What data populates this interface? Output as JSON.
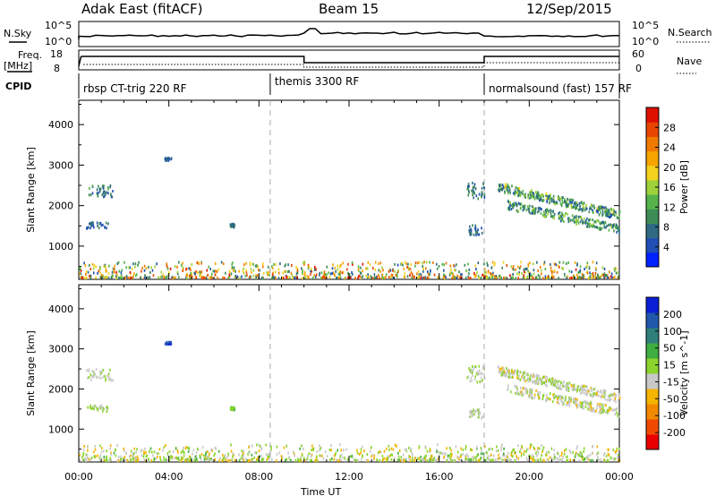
{
  "header": {
    "title": "Adak East (fitACF)",
    "beam": "Beam 15",
    "date": "12/Sep/2015"
  },
  "top_panels": {
    "nsky_label": "N.Sky",
    "nsky_ticks": [
      "10^5",
      "10^0"
    ],
    "nsearch_label": "N.Search",
    "nsearch_ticks": [
      "10^5",
      "10^0"
    ],
    "freq_label": "Freq.",
    "freq_unit": "[MHz]",
    "freq_ticks": [
      "18",
      "8"
    ],
    "nave_label": "Nave",
    "nave_ticks": [
      "60",
      "0"
    ],
    "cpid_label": "CPID"
  },
  "cpid_segments": [
    {
      "label": "rbsp CT-trig 220 RF",
      "start_h": 0.0,
      "end_h": 8.5
    },
    {
      "label": "themis 3300 RF",
      "start_h": 8.5,
      "end_h": 18.0
    },
    {
      "label": "normalsound (fast) 157 RF",
      "start_h": 18.0,
      "end_h": 24.0
    }
  ],
  "colors": {
    "power": [
      "#0022ff",
      "#1f4fb4",
      "#2e6b82",
      "#3e8c55",
      "#55b34a",
      "#9ed23a",
      "#f4d21e",
      "#f5a400",
      "#f07a00",
      "#e84500",
      "#dd1000"
    ],
    "velocity": [
      "#e80000",
      "#ef4a00",
      "#f28a00",
      "#f5b400",
      "#c8c8c8",
      "#8bd42e",
      "#3fae40",
      "#2f7f7a",
      "#2058ad",
      "#0a1fd6"
    ]
  },
  "chart_data": [
    {
      "type": "heatmap",
      "name": "power",
      "ylabel": "Slant Range [km]",
      "ylim": [
        180,
        4600
      ],
      "yticks": [
        1000,
        2000,
        3000,
        4000
      ],
      "xlim": [
        0,
        24
      ],
      "colorbar_label": "Power [dB]",
      "colorbar_ticks": [
        "28",
        "24",
        "20",
        "16",
        "12",
        "8",
        "4"
      ],
      "colorbar_range": [
        0,
        32
      ],
      "dashed_lines_h": [
        8.5,
        18.0
      ],
      "scatter_regions": [
        {
          "t0": 0.3,
          "t1": 1.5,
          "r0": 2200,
          "r1": 2480,
          "vmin": 4,
          "vmax": 12
        },
        {
          "t0": 0.3,
          "t1": 1.3,
          "r0": 1420,
          "r1": 1580,
          "vmin": 4,
          "vmax": 10
        },
        {
          "t0": 3.8,
          "t1": 4.1,
          "r0": 3100,
          "r1": 3160,
          "vmin": 4,
          "vmax": 8
        },
        {
          "t0": 6.7,
          "t1": 6.9,
          "r0": 1450,
          "r1": 1540,
          "vmin": 4,
          "vmax": 10
        },
        {
          "t0": 17.2,
          "t1": 18.0,
          "r0": 2150,
          "r1": 2560,
          "vmin": 4,
          "vmax": 12
        },
        {
          "t0": 17.3,
          "t1": 17.9,
          "r0": 1250,
          "r1": 1500,
          "vmin": 4,
          "vmax": 10
        },
        {
          "t0": 18.6,
          "t1": 24.0,
          "r0": 1500,
          "r1": 2500,
          "vmin": 4,
          "vmax": 18
        },
        {
          "t0": 19.0,
          "t1": 24.0,
          "r0": 1300,
          "r1": 2050,
          "vmin": 4,
          "vmax": 16
        },
        {
          "t0": 0.0,
          "t1": 24.0,
          "r0": 200,
          "r1": 600,
          "vmin": 4,
          "vmax": 30
        }
      ]
    },
    {
      "type": "heatmap",
      "name": "velocity",
      "ylabel": "Slant Range [km]",
      "ylim": [
        180,
        4600
      ],
      "yticks": [
        1000,
        2000,
        3000,
        4000
      ],
      "xlim": [
        0,
        24
      ],
      "xticks": [
        "00:00",
        "04:00",
        "08:00",
        "12:00",
        "16:00",
        "20:00",
        "00:00"
      ],
      "xlabel": "Time UT",
      "colorbar_label": "Velocity [m s^-1]",
      "colorbar_ticks": [
        "200",
        "100",
        "50",
        "15",
        "-15",
        "-50",
        "-100",
        "-200"
      ],
      "colorbar_range": [
        -250,
        250
      ],
      "dashed_lines_h": [
        8.5,
        18.0
      ],
      "scatter_regions": [
        {
          "t0": 0.3,
          "t1": 1.5,
          "r0": 2200,
          "r1": 2480,
          "vmin": -30,
          "vmax": 20
        },
        {
          "t0": 0.3,
          "t1": 1.3,
          "r0": 1420,
          "r1": 1580,
          "vmin": -30,
          "vmax": 20
        },
        {
          "t0": 3.8,
          "t1": 4.1,
          "r0": 3100,
          "r1": 3160,
          "vmin": 150,
          "vmax": 250
        },
        {
          "t0": 6.7,
          "t1": 6.9,
          "r0": 1450,
          "r1": 1540,
          "vmin": 20,
          "vmax": 60
        },
        {
          "t0": 17.2,
          "t1": 18.0,
          "r0": 2150,
          "r1": 2560,
          "vmin": -30,
          "vmax": 20
        },
        {
          "t0": 17.3,
          "t1": 17.9,
          "r0": 1250,
          "r1": 1500,
          "vmin": -30,
          "vmax": 20
        },
        {
          "t0": 18.6,
          "t1": 24.0,
          "r0": 1500,
          "r1": 2500,
          "vmin": -60,
          "vmax": 20
        },
        {
          "t0": 19.0,
          "t1": 24.0,
          "r0": 1300,
          "r1": 2050,
          "vmin": -60,
          "vmax": 20
        },
        {
          "t0": 0.0,
          "t1": 24.0,
          "r0": 200,
          "r1": 600,
          "vmin": -80,
          "vmax": 60
        }
      ]
    }
  ]
}
